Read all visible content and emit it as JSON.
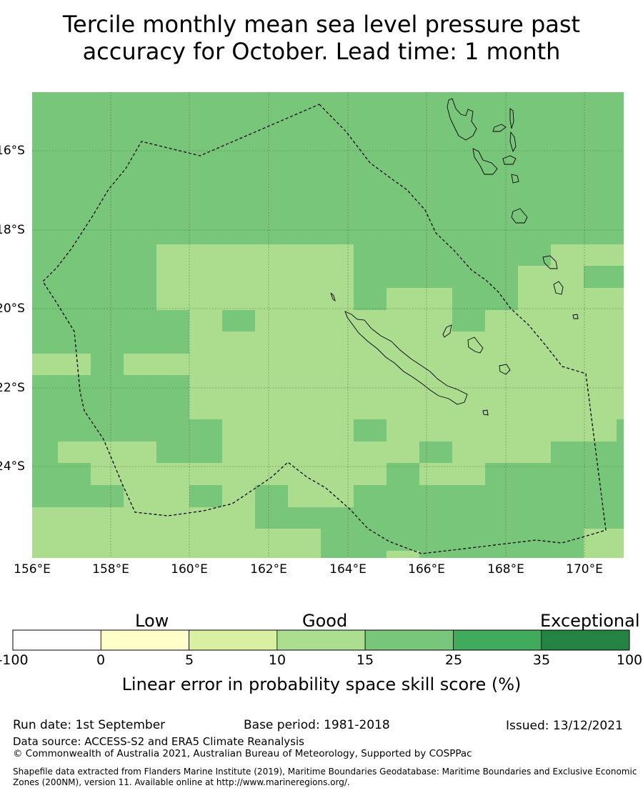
{
  "title": {
    "line1": "Tercile monthly mean sea level pressure past",
    "line2": "accuracy for October. Lead time: 1 month"
  },
  "map": {
    "lat_labels": [
      "16°S",
      "18°S",
      "20°S",
      "22°S",
      "24°S"
    ],
    "lon_labels": [
      "156°E",
      "158°E",
      "160°E",
      "162°E",
      "164°E",
      "166°E",
      "168°E",
      "170°E"
    ],
    "extent": {
      "lon_min": 156,
      "lon_max": 171,
      "lat_north": -14.5,
      "lat_south": -26.3
    },
    "colors": {
      "good_10_15": "#acdd8e",
      "good_15_25": "#78c67a",
      "grid": "#3a5a3a"
    }
  },
  "colorbar": {
    "category_labels": {
      "low": "Low",
      "good": "Good",
      "exceptional": "Exceptional"
    },
    "boundaries": [
      "-100",
      "0",
      "5",
      "10",
      "15",
      "25",
      "35",
      "100"
    ],
    "colors": [
      "#ffffff",
      "#ffffcc",
      "#d9f0a3",
      "#addd8e",
      "#78c679",
      "#41ab5d",
      "#238443"
    ],
    "title": "Linear error in probability space skill score (%)"
  },
  "footer": {
    "run_date": "Run date: 1st September",
    "base_period": "Base period: 1981-2018",
    "issued": "Issued: 13/12/2021",
    "data_source": "Data source: ACCESS-S2 and ERA5 Climate Reanalysis",
    "copyright": "© Commonwealth of Australia 2021, Australian Bureau of Meteorology, Supported by COSPPac",
    "shapefile_line1": "Shapefile data extracted from Flanders Marine Institute (2019), Maritime Boundaries Geodatabase: Maritime Boundaries and Exclusive Economic",
    "shapefile_line2": "Zones (200NM), version 11. Available online at http://www.marineregions.org/."
  }
}
